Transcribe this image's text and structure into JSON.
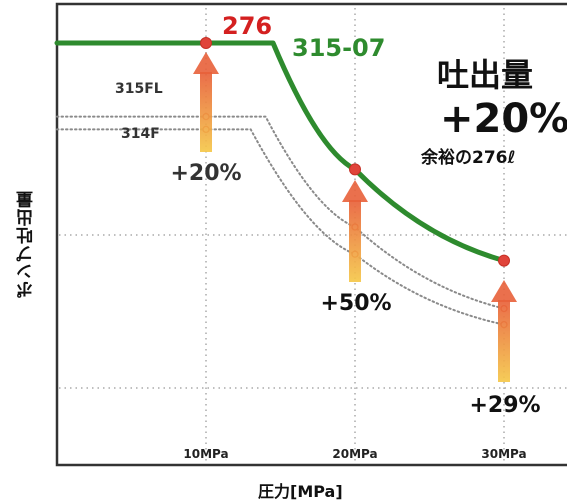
{
  "chart_data": {
    "type": "line",
    "xlabel": "圧力[MPa]",
    "ylabel": "ポンプ吐出量",
    "xtick_labels": [
      "10MPa",
      "20MPa",
      "30MPa"
    ],
    "series": [
      {
        "name": "315-07",
        "color": "#2e8b2e",
        "x": [
          0,
          10,
          14.5,
          20,
          30
        ],
        "y": [
          276,
          276,
          276,
          197,
          140
        ]
      },
      {
        "name": "315FL",
        "color": "#8a8a8a",
        "x": [
          0,
          10,
          14,
          20,
          30
        ],
        "y": [
          230,
          230,
          230,
          161,
          110
        ]
      },
      {
        "name": "314F",
        "color": "#8a8a8a",
        "x": [
          0,
          10,
          13,
          20,
          30
        ],
        "y": [
          222,
          222,
          222,
          144,
          100
        ]
      }
    ],
    "annotations": [
      {
        "text": "276",
        "color": "#d42020"
      },
      {
        "text": "+20%",
        "color": "#333333"
      },
      {
        "text": "+50%",
        "color": "#111111"
      },
      {
        "text": "+29%",
        "color": "#111111"
      }
    ],
    "callout": {
      "title": "吐出量",
      "value": "+20%",
      "note": "余裕の276ℓ"
    },
    "grid": true
  }
}
